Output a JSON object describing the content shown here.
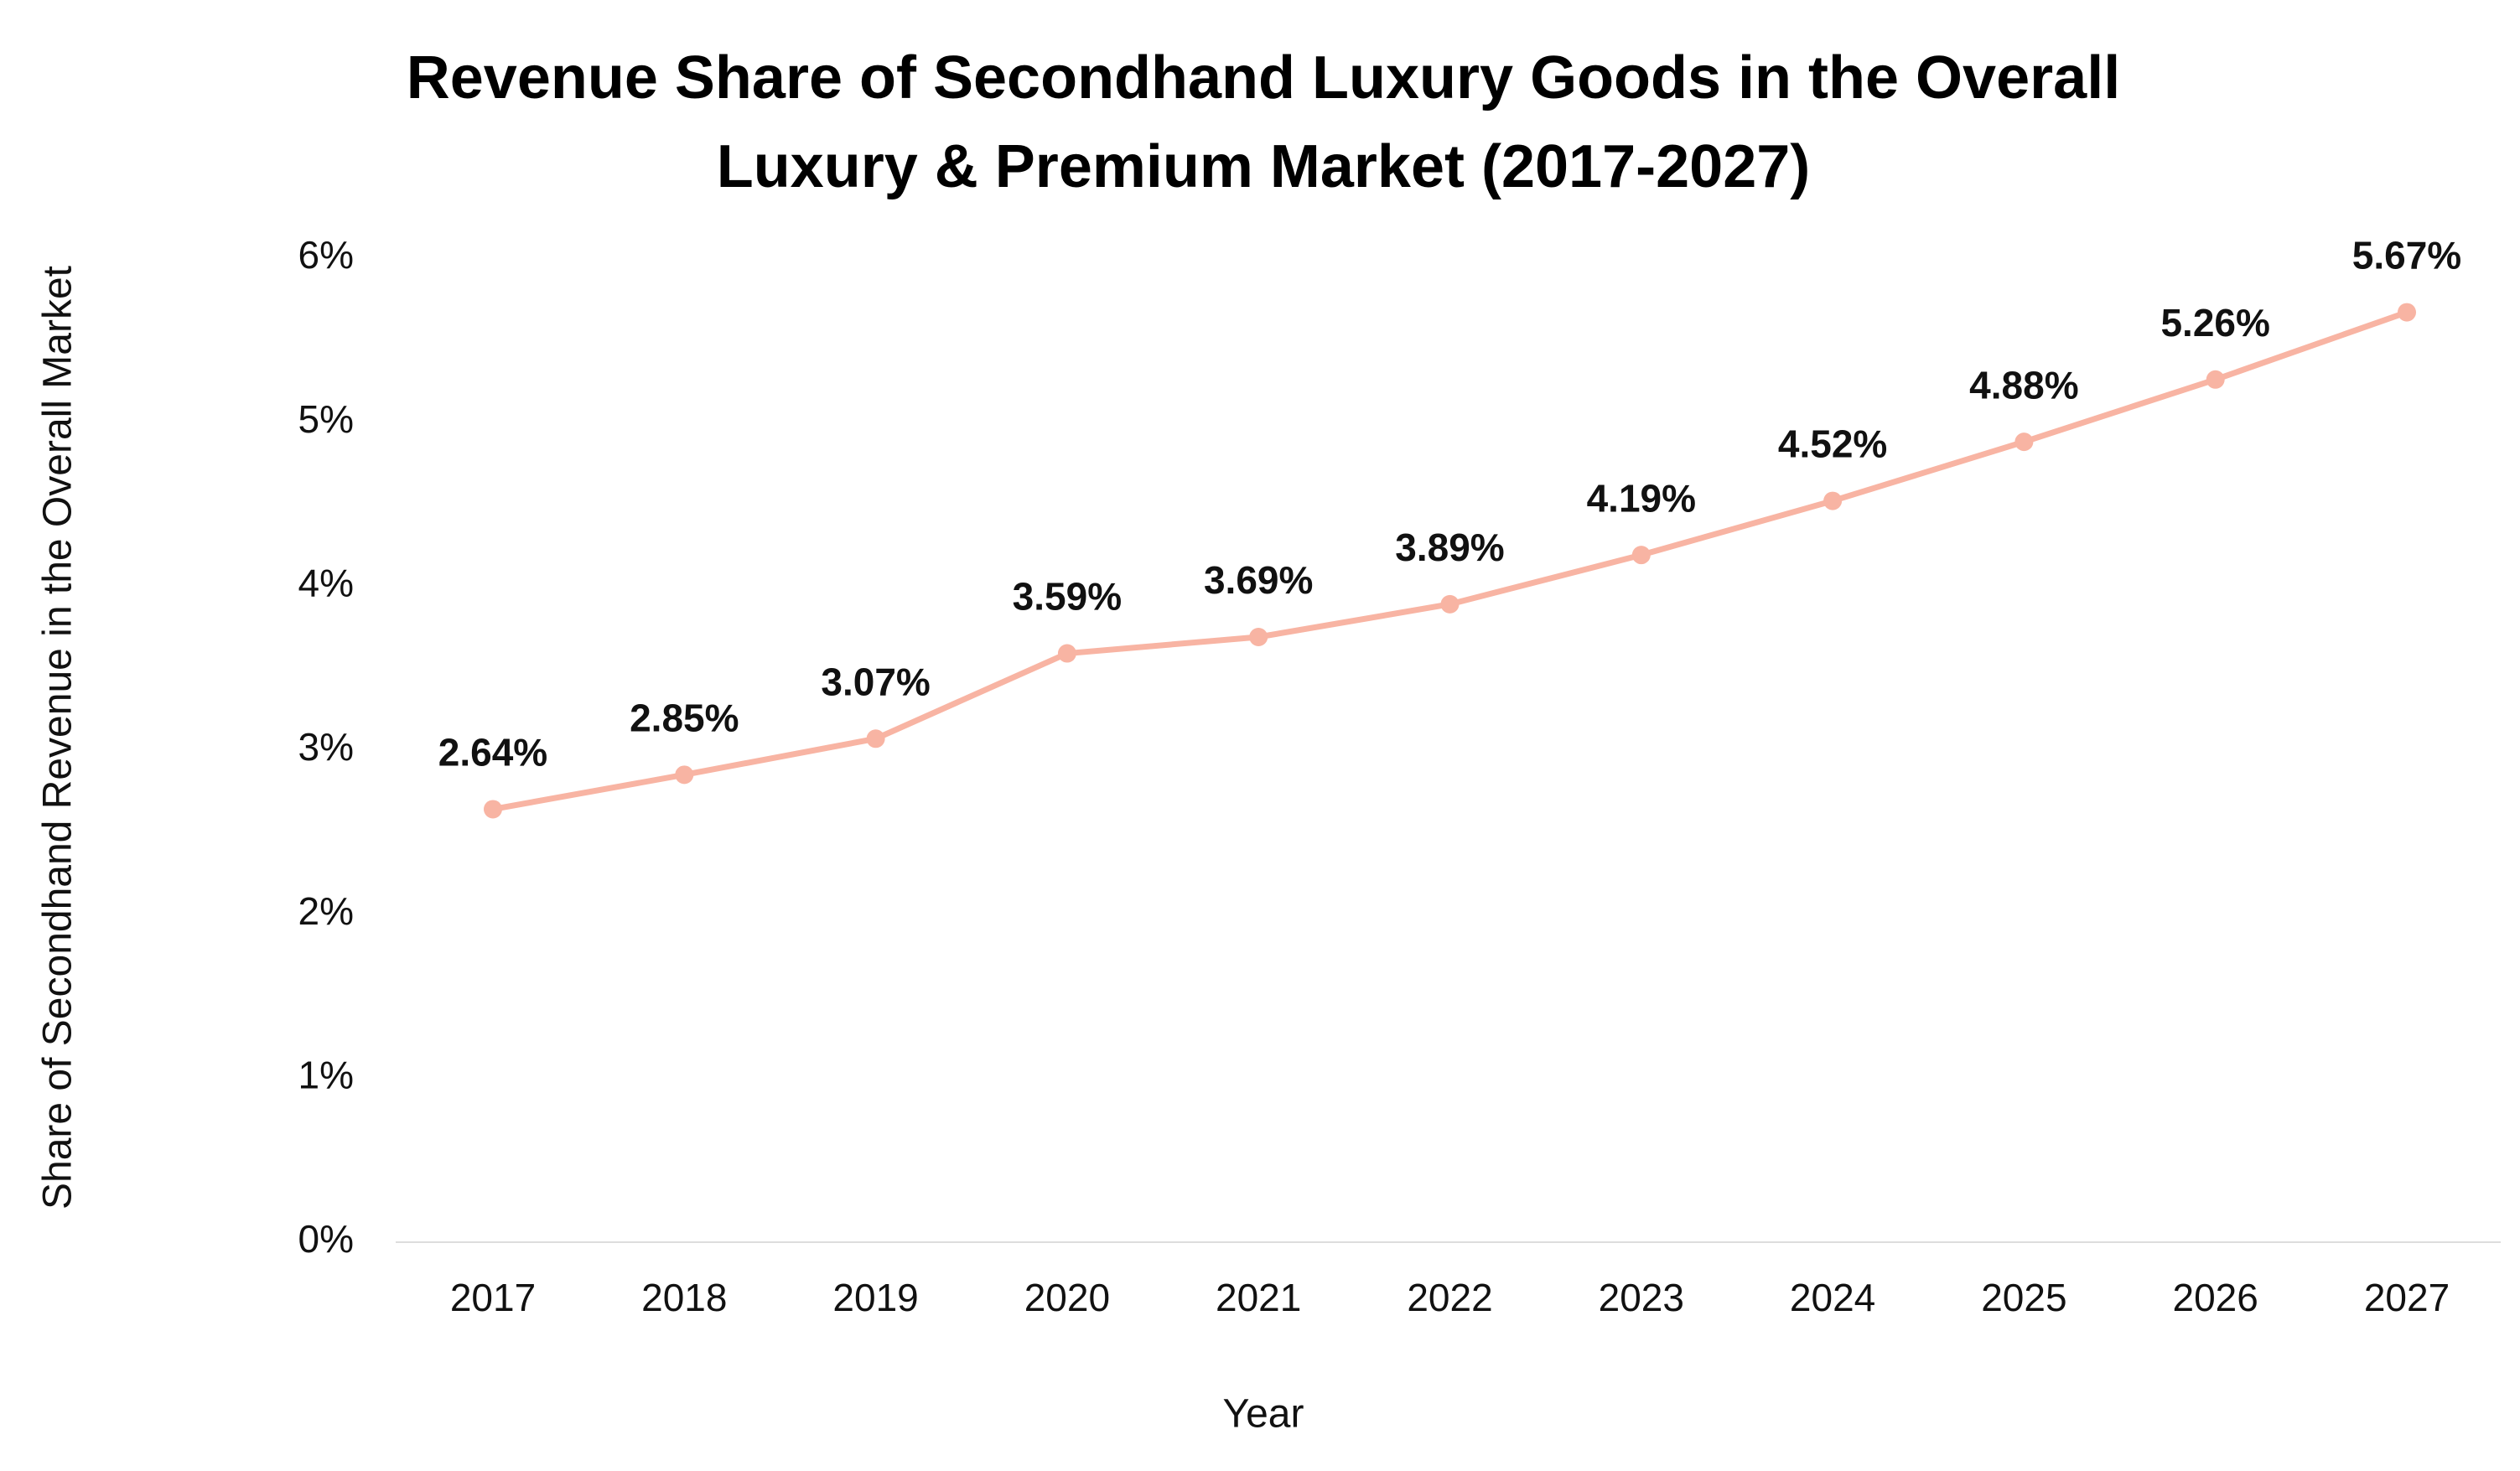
{
  "chart_data": {
    "type": "line",
    "title": "Revenue Share of Secondhand Luxury Goods in the Overall Luxury & Premium Market (2017-2027)",
    "x_label": "Year",
    "y_label": "Share of Secondhand Revenue in the Overall Market",
    "categories": [
      "2017",
      "2018",
      "2019",
      "2020",
      "2021",
      "2022",
      "2023",
      "2024",
      "2025",
      "2026",
      "2027"
    ],
    "values": [
      2.64,
      2.85,
      3.07,
      3.59,
      3.69,
      3.89,
      4.19,
      4.52,
      4.88,
      5.26,
      5.67
    ],
    "value_labels": [
      "2.64%",
      "2.85%",
      "3.07%",
      "3.59%",
      "3.69%",
      "3.89%",
      "4.19%",
      "4.52%",
      "4.88%",
      "5.26%",
      "5.67%"
    ],
    "color": "#f8b4a3",
    "ylim": [
      0,
      6
    ],
    "yticks": [
      {
        "value": 0,
        "label": "0%"
      },
      {
        "value": 1,
        "label": "1%"
      },
      {
        "value": 2,
        "label": "2%"
      },
      {
        "value": 3,
        "label": "3%"
      },
      {
        "value": 4,
        "label": "4%"
      },
      {
        "value": 5,
        "label": "5%"
      },
      {
        "value": 6,
        "label": "6%"
      }
    ],
    "grid": false
  }
}
